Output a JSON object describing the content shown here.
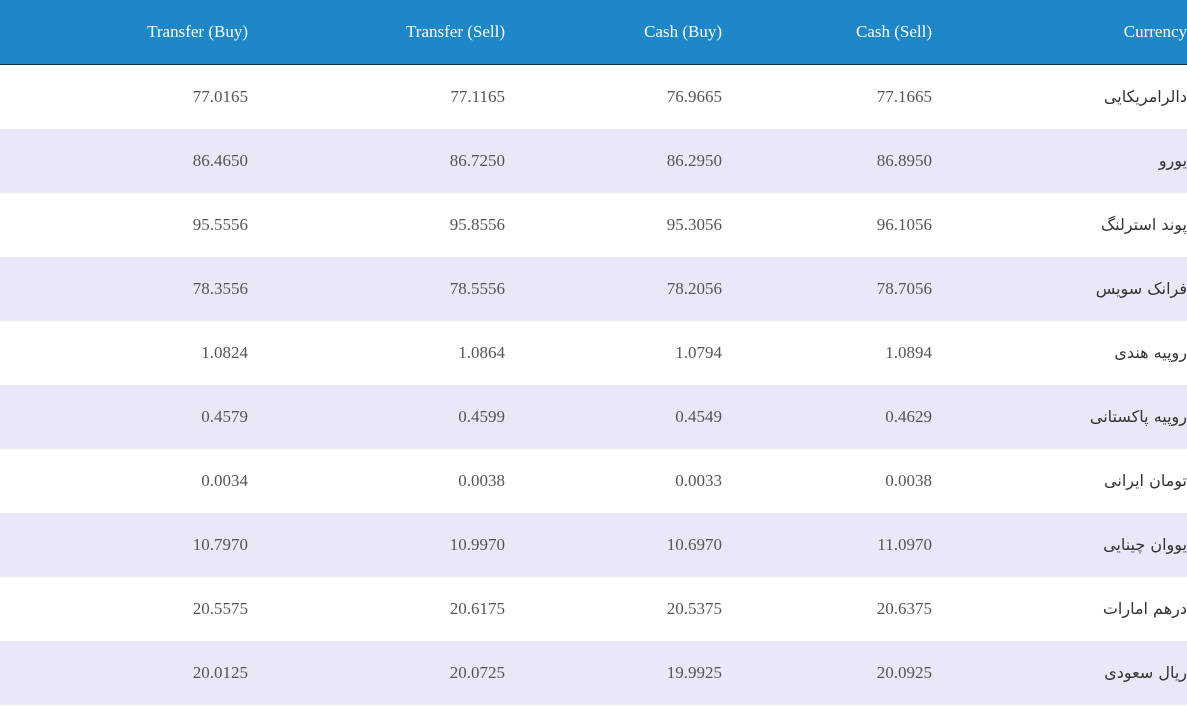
{
  "table": {
    "headers": {
      "transfer_buy": "Transfer (Buy)",
      "transfer_sell": "Transfer (Sell)",
      "cash_buy": "Cash (Buy)",
      "cash_sell": "Cash (Sell)",
      "currency": "Currency"
    },
    "colors": {
      "header_bg": "#1e87c8",
      "header_text": "#ffffff",
      "row_alt_bg": "#e8e8f8",
      "row_bg": "#ffffff"
    },
    "rows": [
      {
        "transfer_buy": "77.0165",
        "transfer_sell": "77.1165",
        "cash_buy": "76.9665",
        "cash_sell": "77.1665",
        "currency": "دالرامریکایی"
      },
      {
        "transfer_buy": "86.4650",
        "transfer_sell": "86.7250",
        "cash_buy": "86.2950",
        "cash_sell": "86.8950",
        "currency": "یورو"
      },
      {
        "transfer_buy": "95.5556",
        "transfer_sell": "95.8556",
        "cash_buy": "95.3056",
        "cash_sell": "96.1056",
        "currency": "پوند استرلنگ"
      },
      {
        "transfer_buy": "78.3556",
        "transfer_sell": "78.5556",
        "cash_buy": "78.2056",
        "cash_sell": "78.7056",
        "currency": "فرانک سویس"
      },
      {
        "transfer_buy": "1.0824",
        "transfer_sell": "1.0864",
        "cash_buy": "1.0794",
        "cash_sell": "1.0894",
        "currency": "روپیه هندی"
      },
      {
        "transfer_buy": "0.4579",
        "transfer_sell": "0.4599",
        "cash_buy": "0.4549",
        "cash_sell": "0.4629",
        "currency": "روپیه پاکستانی"
      },
      {
        "transfer_buy": "0.0034",
        "transfer_sell": "0.0038",
        "cash_buy": "0.0033",
        "cash_sell": "0.0038",
        "currency": "تومان ایرانی"
      },
      {
        "transfer_buy": "10.7970",
        "transfer_sell": "10.9970",
        "cash_buy": "10.6970",
        "cash_sell": "11.0970",
        "currency": "یووان چینایی"
      },
      {
        "transfer_buy": "20.5575",
        "transfer_sell": "20.6175",
        "cash_buy": "20.5375",
        "cash_sell": "20.6375",
        "currency": "درهم امارات"
      },
      {
        "transfer_buy": "20.0125",
        "transfer_sell": "20.0725",
        "cash_buy": "19.9925",
        "cash_sell": "20.0925",
        "currency": "ریال سعودی"
      }
    ]
  }
}
